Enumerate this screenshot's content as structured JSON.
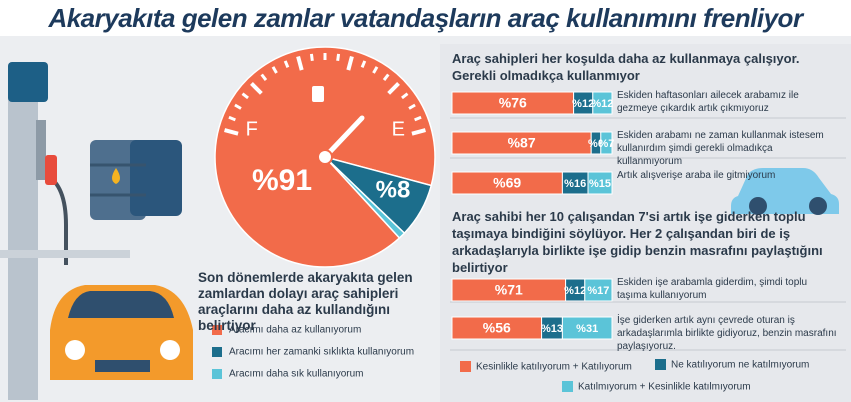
{
  "title": "Akaryakıta gelen zamlar vatandaşların araç kullanımını frenliyor",
  "chart_data": [
    {
      "type": "pie",
      "subtitle": "Son dönemlerde akaryakıta gelen zamlardan dolayı araç sahipleri araçlarını daha az kullandığını belirtiyor",
      "categories": [
        "Aracımı daha az kullanıyorum",
        "Aracımı her zamanki sıklıkta kullanıyorum",
        "Aracımı daha sık kullanıyorum"
      ],
      "values": [
        91,
        8,
        1
      ],
      "value_labels": [
        "%91",
        "%8",
        null
      ],
      "colors": [
        "#f26b4a",
        "#1c6e8c",
        "#5bc4d8"
      ],
      "gauge_labels": [
        "F",
        "E"
      ]
    },
    {
      "type": "stacked-bar",
      "title": "Araç sahipleri her koşulda daha az kullanmaya çalışıyor. Gerekli olmadıkça kullanmıyor",
      "categories": [
        "Eskiden haftasonları ailecek arabamız ile gezmeye çıkardık artık çıkmıyoruz",
        "Eskiden arabamı ne zaman kullanmak istesem kullanırdım şimdi gerekli olmadıkça kullanmıyorum",
        "Artık alışverişe araba ile gitmiyorum"
      ],
      "series": [
        {
          "color": "#f26b4a",
          "values": [
            76,
            87,
            69
          ],
          "value_labels": [
            "%76",
            "%87",
            "%69"
          ]
        },
        {
          "color": "#1c6e8c",
          "values": [
            12,
            6,
            16
          ],
          "value_labels": [
            "%12",
            "%6",
            "%16"
          ]
        },
        {
          "color": "#5bc4d8",
          "values": [
            12,
            7,
            15
          ],
          "value_labels": [
            "%12",
            "%7",
            "%15"
          ]
        }
      ]
    },
    {
      "type": "stacked-bar",
      "title": "Araç sahibi her 10 çalışandan 7'si artık işe giderken toplu taşımaya bindiğini söylüyor. Her 2 çalışandan biri de iş arkadaşlarıyla birlikte işe gidip benzin masrafını paylaştığını belirtiyor",
      "categories": [
        "Eskiden işe arabamla giderdim, şimdi toplu taşıma kullanıyorum",
        "İşe giderken artık aynı çevrede oturan iş arkadaşlarımla birlikte gidiyoruz, benzin masrafını paylaşıyoruz."
      ],
      "series": [
        {
          "name": "Kesinlikle katılıyorum + Katılıyorum",
          "color": "#f26b4a",
          "values": [
            71,
            56
          ],
          "value_labels": [
            "%71",
            "%56"
          ]
        },
        {
          "name": "Ne katılıyorum ne katılmıyorum",
          "color": "#1c6e8c",
          "values": [
            12,
            13
          ],
          "value_labels": [
            "%12",
            "%13"
          ]
        },
        {
          "name": "Katılmıyorum + Kesinlikle katılmıyorum",
          "color": "#5bc4d8",
          "values": [
            17,
            31
          ],
          "value_labels": [
            "%17",
            "%31"
          ]
        }
      ]
    }
  ]
}
